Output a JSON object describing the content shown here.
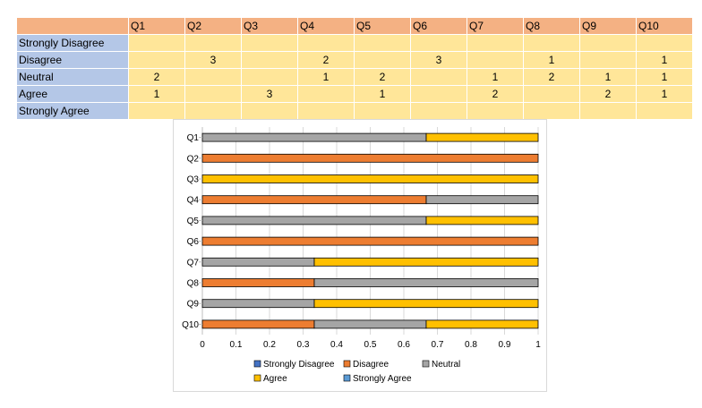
{
  "table": {
    "headers": [
      "Q1",
      "Q2",
      "Q3",
      "Q4",
      "Q5",
      "Q6",
      "Q7",
      "Q8",
      "Q9",
      "Q10"
    ],
    "rows": [
      {
        "label": "Strongly Disagree",
        "values": [
          "",
          "",
          "",
          "",
          "",
          "",
          "",
          "",
          "",
          ""
        ]
      },
      {
        "label": "Disagree",
        "values": [
          "",
          "3",
          "",
          "2",
          "",
          "3",
          "",
          "1",
          "",
          "1"
        ]
      },
      {
        "label": "Neutral",
        "values": [
          "2",
          "",
          "",
          "1",
          "2",
          "",
          "1",
          "2",
          "1",
          "1"
        ]
      },
      {
        "label": "Agree",
        "values": [
          "1",
          "",
          "3",
          "",
          "1",
          "",
          "2",
          "",
          "2",
          "1"
        ]
      },
      {
        "label": "Strongly Agree",
        "values": [
          "",
          "",
          "",
          "",
          "",
          "",
          "",
          "",
          "",
          ""
        ]
      }
    ]
  },
  "chart_data": {
    "type": "bar",
    "orientation": "horizontal",
    "stacked": "percent",
    "categories": [
      "Q1",
      "Q2",
      "Q3",
      "Q4",
      "Q5",
      "Q6",
      "Q7",
      "Q8",
      "Q9",
      "Q10"
    ],
    "series": [
      {
        "name": "Strongly Disagree",
        "color": "#4472c4",
        "values": [
          0,
          0,
          0,
          0,
          0,
          0,
          0,
          0,
          0,
          0
        ]
      },
      {
        "name": "Disagree",
        "color": "#ed7d31",
        "values": [
          0,
          1,
          0,
          0.6667,
          0,
          1,
          0,
          0.3333,
          0,
          0.3333
        ]
      },
      {
        "name": "Neutral",
        "color": "#a5a5a5",
        "values": [
          0.6667,
          0,
          0,
          0.3333,
          0.6667,
          0,
          0.3333,
          0.6667,
          0.3333,
          0.3333
        ]
      },
      {
        "name": "Agree",
        "color": "#ffc000",
        "values": [
          0.3333,
          0,
          1,
          0,
          0.3333,
          0,
          0.6667,
          0,
          0.6667,
          0.3333
        ]
      },
      {
        "name": "Strongly Agree",
        "color": "#5b9bd5",
        "values": [
          0,
          0,
          0,
          0,
          0,
          0,
          0,
          0,
          0,
          0
        ]
      }
    ],
    "xticks": [
      "0",
      "0.1",
      "0.2",
      "0.3",
      "0.4",
      "0.5",
      "0.6",
      "0.7",
      "0.8",
      "0.9",
      "1"
    ],
    "xlim": [
      0,
      1
    ],
    "grid": true,
    "legend_position": "bottom"
  }
}
